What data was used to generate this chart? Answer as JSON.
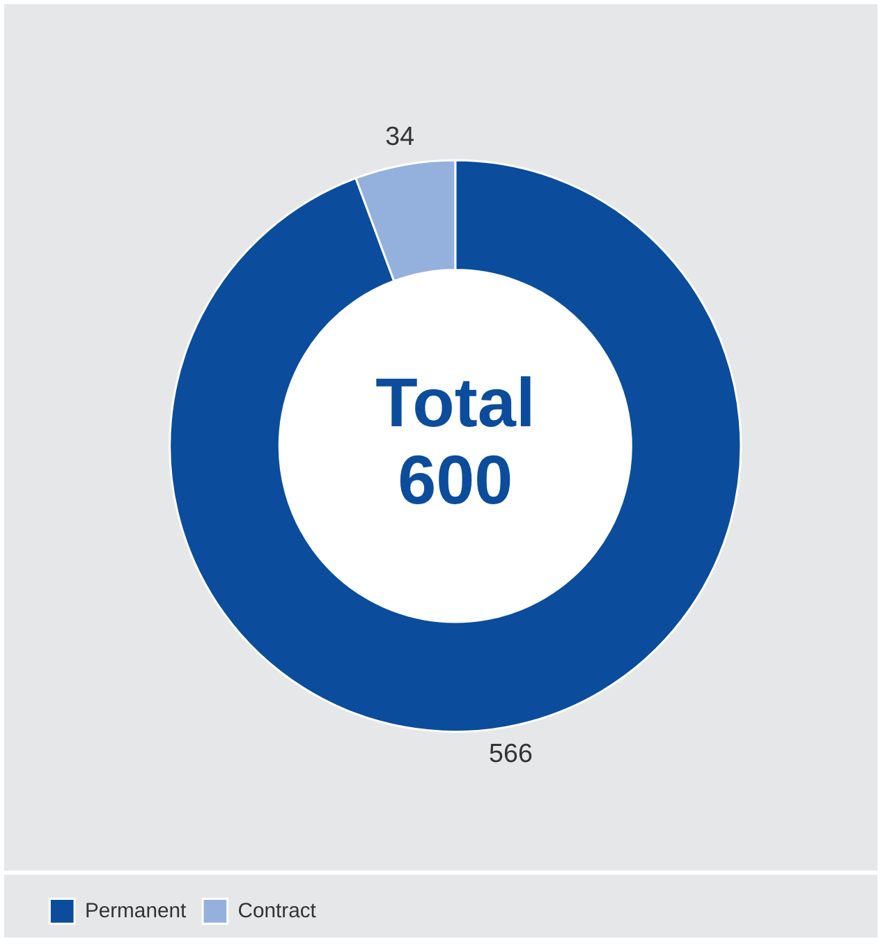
{
  "chart_data": {
    "type": "donut",
    "categories": [
      "Permanent",
      "Contract"
    ],
    "values": [
      566,
      34
    ],
    "colors": [
      "#0b4d9c",
      "#94b1de"
    ],
    "data_labels": true,
    "legend": "bottom left",
    "annotations": [
      "Total",
      "600"
    ]
  }
}
